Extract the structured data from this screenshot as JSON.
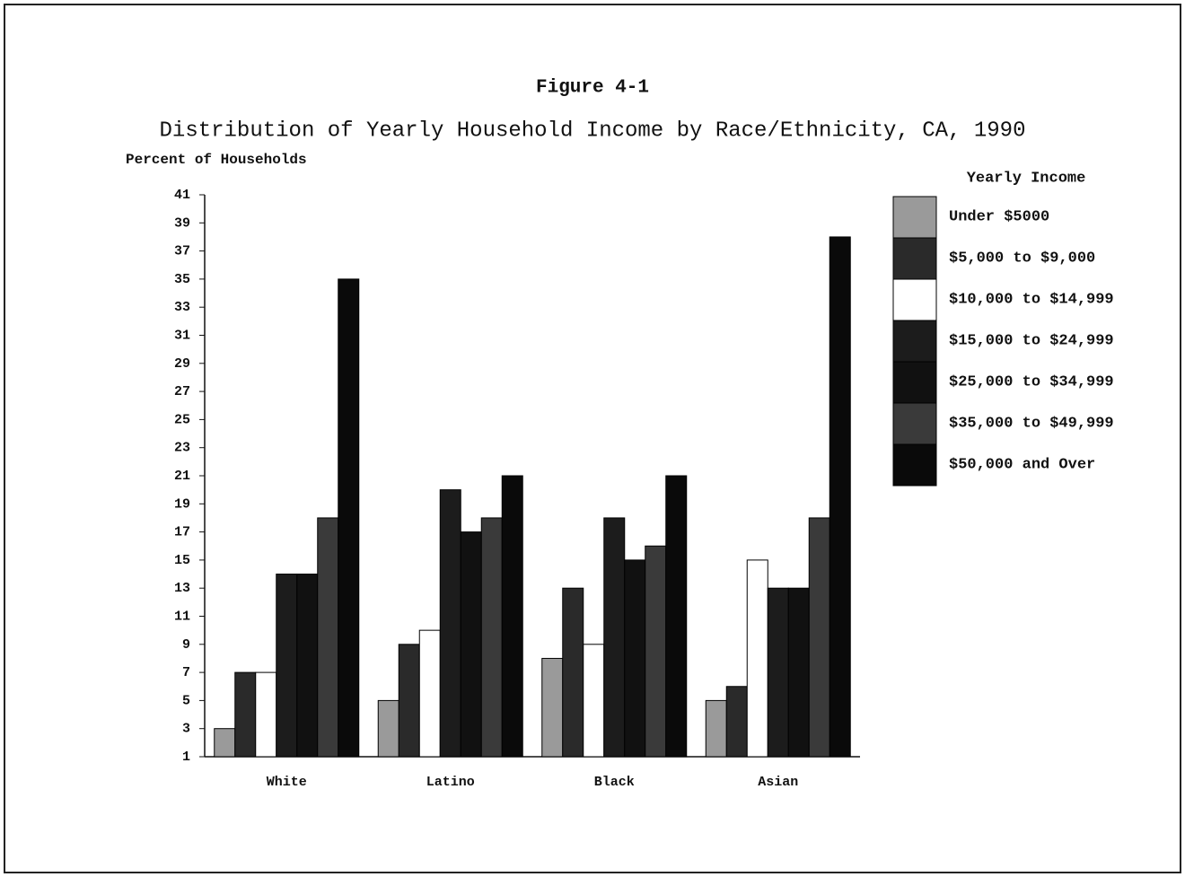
{
  "chart_data": {
    "type": "bar",
    "title": "Figure 4-1",
    "subtitle": "Distribution of Yearly Household Income by Race/Ethnicity, CA, 1990",
    "y_label": "Percent of Households",
    "legend_title": "Yearly Income",
    "categories": [
      "White",
      "Latino",
      "Black",
      "Asian"
    ],
    "series": [
      {
        "name": "Under $5000",
        "color": "#9a9a9a",
        "values": [
          3,
          5,
          8,
          5
        ]
      },
      {
        "name": "$5,000 to $9,000",
        "color": "#2a2a2a",
        "values": [
          7,
          9,
          13,
          6
        ]
      },
      {
        "name": "$10,000 to $14,999",
        "color": "#ffffff",
        "values": [
          7,
          10,
          9,
          15
        ]
      },
      {
        "name": "$15,000 to $24,999",
        "color": "#1c1c1c",
        "values": [
          14,
          20,
          18,
          13
        ]
      },
      {
        "name": "$25,000 to $34,999",
        "color": "#111111",
        "values": [
          14,
          17,
          15,
          13
        ]
      },
      {
        "name": "$35,000 to $49,999",
        "color": "#3a3a3a",
        "values": [
          18,
          18,
          16,
          18
        ]
      },
      {
        "name": "$50,000 and Over",
        "color": "#0a0a0a",
        "values": [
          35,
          21,
          21,
          38
        ]
      }
    ],
    "ylim": [
      1,
      41
    ],
    "yticks": [
      1,
      3,
      5,
      7,
      9,
      11,
      13,
      15,
      17,
      19,
      21,
      23,
      25,
      27,
      29,
      31,
      33,
      35,
      37,
      39,
      41
    ],
    "legend": "right"
  }
}
